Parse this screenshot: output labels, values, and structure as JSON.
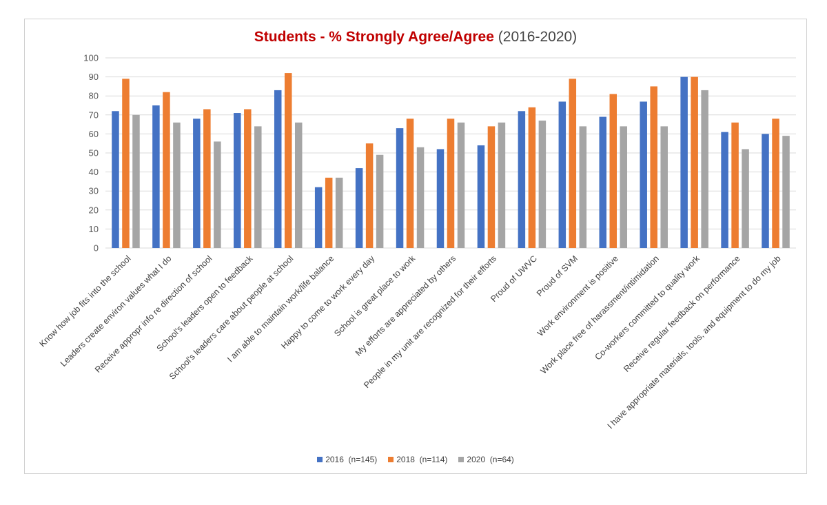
{
  "chart_data": {
    "type": "bar",
    "title": "Students - % Strongly Agree/Agree",
    "subtitle": "(2016-2020)",
    "xlabel": "",
    "ylabel": "",
    "ylim": [
      0,
      100
    ],
    "yticks": [
      0,
      10,
      20,
      30,
      40,
      50,
      60,
      70,
      80,
      90,
      100
    ],
    "grid": true,
    "legend_position": "bottom",
    "categories": [
      "Know how job fits into the school",
      "Leaders create environ values what I do",
      "Receive appropr info re direction of school",
      "School's leaders open to feedback",
      "School's leaders care about people at school",
      "I am able to maintain work/life balance",
      "Happy to come to work every day",
      "School is great place to work",
      "My efforts are appreciated by others",
      "People in my unit are recognized for their efforts",
      "Proud of UWVC",
      "Proud of SVM",
      "Work environment is positive",
      "Work place free of harassment/intimidation",
      "Co-workers committed to quality work",
      "Receive regular feedback on performance",
      "I have appropriate materials, tools, and equipment to do my job"
    ],
    "series": [
      {
        "name": "2016  (n=145)",
        "color": "#4472c4",
        "values": [
          72,
          75,
          68,
          71,
          83,
          32,
          42,
          63,
          52,
          54,
          72,
          77,
          69,
          77,
          90,
          61,
          60
        ]
      },
      {
        "name": "2018  (n=114)",
        "color": "#ed7d31",
        "values": [
          89,
          82,
          73,
          73,
          92,
          37,
          55,
          68,
          68,
          64,
          74,
          89,
          81,
          85,
          90,
          66,
          68
        ]
      },
      {
        "name": "2020  (n=64)",
        "color": "#a5a5a5",
        "values": [
          70,
          66,
          56,
          64,
          66,
          37,
          49,
          53,
          66,
          66,
          67,
          64,
          64,
          64,
          83,
          52,
          59
        ]
      }
    ]
  }
}
